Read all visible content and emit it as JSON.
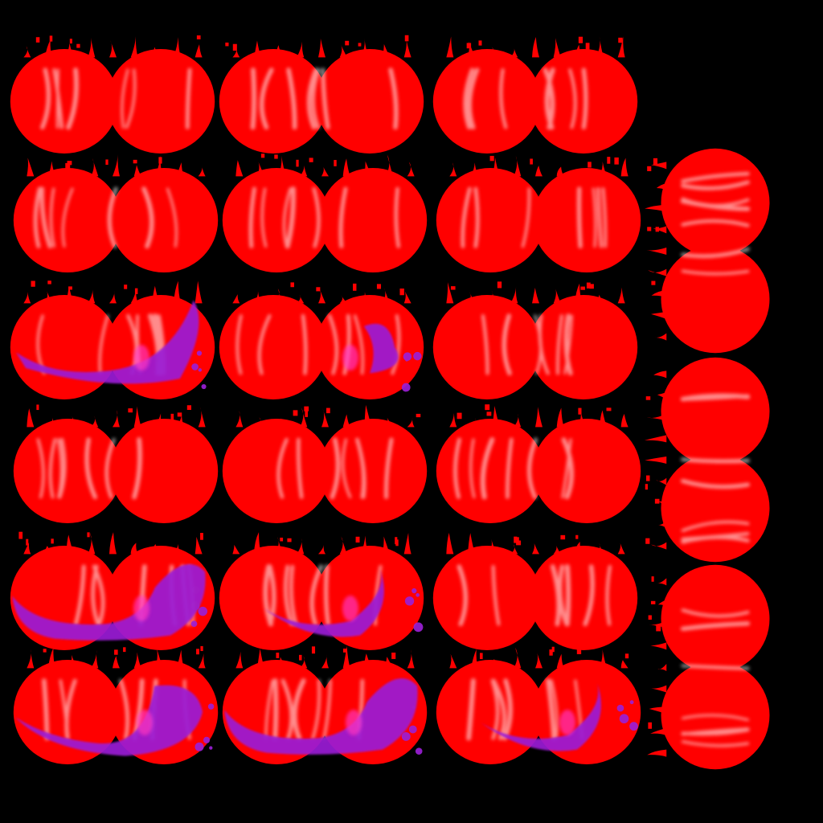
{
  "sheet": {
    "background": "#000000",
    "flame_color": "#ff0000",
    "highlight_color": "#ffffff",
    "accent_color": "#9b1fd6",
    "accent_glow": "#ff3bd0"
  },
  "frames": [
    {
      "id": "r1c1",
      "accent": "none"
    },
    {
      "id": "r1c2",
      "accent": "none"
    },
    {
      "id": "r1c3",
      "accent": "none"
    },
    {
      "id": "r2c1",
      "accent": "none"
    },
    {
      "id": "r2c2",
      "accent": "none"
    },
    {
      "id": "r2c3",
      "accent": "none"
    },
    {
      "id": "r3c1",
      "accent": "purple-wave-left"
    },
    {
      "id": "r3c2",
      "accent": "purple-wisp-right"
    },
    {
      "id": "r3c3",
      "accent": "none"
    },
    {
      "id": "r4c1",
      "accent": "none"
    },
    {
      "id": "r4c2",
      "accent": "none"
    },
    {
      "id": "r4c3",
      "accent": "none"
    },
    {
      "id": "r5c1",
      "accent": "purple-wave-both"
    },
    {
      "id": "r5c2",
      "accent": "purple-wave-center"
    },
    {
      "id": "r5c3",
      "accent": "none"
    },
    {
      "id": "r6c1",
      "accent": "purple-wave-right"
    },
    {
      "id": "r6c2",
      "accent": "purple-wave-both"
    },
    {
      "id": "r6c3",
      "accent": "purple-wave-center"
    }
  ],
  "side_frames": [
    {
      "id": "s1",
      "accent": "none"
    },
    {
      "id": "s2",
      "accent": "none"
    },
    {
      "id": "s3",
      "accent": "none"
    }
  ]
}
